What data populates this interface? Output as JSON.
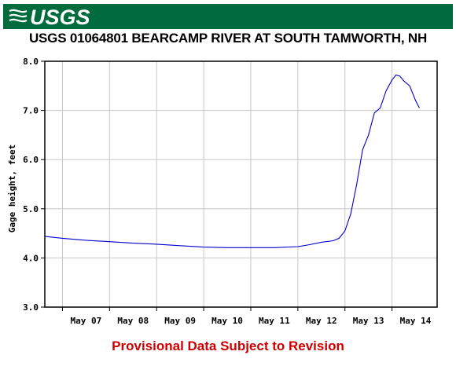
{
  "header": {
    "logo_text": "USGS",
    "brand_color": "#006b3c"
  },
  "chart_data": {
    "type": "line",
    "title": "USGS 01064801 BEARCAMP RIVER AT SOUTH TAMWORTH, NH",
    "xlabel": "",
    "ylabel": "Gage height, feet",
    "x_ticks": [
      "May 07",
      "May 08",
      "May 09",
      "May 10",
      "May 11",
      "May 12",
      "May 13",
      "May 14"
    ],
    "y_ticks": [
      "3.0",
      "4.0",
      "5.0",
      "6.0",
      "7.0",
      "8.0"
    ],
    "xlim": [
      "May 06 15:00",
      "May 14 23:00"
    ],
    "ylim": [
      3.0,
      8.0
    ],
    "grid": true,
    "line_color": "#0000cc",
    "series": [
      {
        "x": [
          "May 06 15:00",
          "May 07 00:00",
          "May 07 12:00",
          "May 08 00:00",
          "May 08 12:00",
          "May 09 00:00",
          "May 09 12:00",
          "May 10 00:00",
          "May 10 12:00",
          "May 11 00:00",
          "May 11 12:00",
          "May 12 00:00",
          "May 12 06:00",
          "May 12 12:00",
          "May 12 18:00",
          "May 12 21:00",
          "May 13 00:00",
          "May 13 03:00",
          "May 13 06:00",
          "May 13 09:00",
          "May 13 12:00",
          "May 13 15:00",
          "May 13 18:00",
          "May 13 21:00",
          "May 14 00:00",
          "May 14 02:00",
          "May 14 04:00",
          "May 14 06:00",
          "May 14 09:00",
          "May 14 12:00",
          "May 14 14:00"
        ],
        "values": [
          4.44,
          4.4,
          4.36,
          4.33,
          4.3,
          4.28,
          4.25,
          4.22,
          4.21,
          4.21,
          4.21,
          4.23,
          4.27,
          4.32,
          4.35,
          4.4,
          4.55,
          4.9,
          5.5,
          6.2,
          6.5,
          6.95,
          7.05,
          7.4,
          7.62,
          7.72,
          7.7,
          7.6,
          7.5,
          7.2,
          7.05
        ]
      }
    ]
  },
  "footer": {
    "note": "Provisional Data Subject to Revision"
  }
}
